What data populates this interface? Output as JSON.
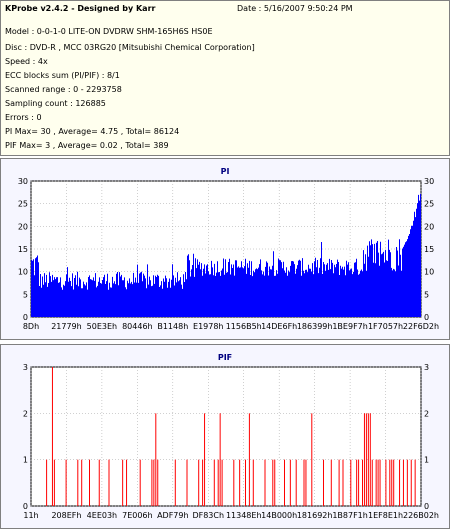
{
  "header": {
    "brand": "KProbe v2.4.2 - Designed by Karr",
    "date": "Date : 5/16/2007 9:50:24 PM"
  },
  "info_lines": [
    "Model : 0-0-1-0 LITE-ON DVDRW SHM-165H6S HS0E",
    "Disc : DVD-R , MCC 03RG20  [Mitsubishi Chemical Corporation]",
    "Speed : 4x",
    "ECC blocks sum (PI/PIF) : 8/1",
    "Scanned range : 0 - 2293758",
    "Sampling count : 126885",
    "Errors : 0",
    "PI Max= 30 , Average= 4.75 , Total= 86124",
    "PIF Max= 3 , Average= 0.02 , Total= 389"
  ],
  "colors": {
    "pi_series": "#0000ff",
    "pif_series": "#ff0000",
    "title": "#000080",
    "plot_bg": "#f6f6ff",
    "info_bg": "#ffffee"
  },
  "chart_data": [
    {
      "type": "bar",
      "title": "PI",
      "ylim": [
        0,
        30
      ],
      "yticks": [
        0,
        5,
        10,
        15,
        20,
        25,
        30
      ],
      "xticks": [
        "8Dh",
        "21779h",
        "50E3Eh",
        "80446h",
        "B1148h",
        "E1978h",
        "1156B5h",
        "14DE6Fh",
        "186399h",
        "1BE9F7h",
        "1F7057h",
        "22F6D2h"
      ],
      "grid": true,
      "profile": [
        {
          "from": 0.0,
          "to": 0.02,
          "low": 8,
          "high": 15
        },
        {
          "from": 0.02,
          "to": 0.4,
          "low": 6,
          "high": 10
        },
        {
          "from": 0.4,
          "to": 0.42,
          "low": 8,
          "high": 15
        },
        {
          "from": 0.42,
          "to": 0.85,
          "low": 9,
          "high": 13
        },
        {
          "from": 0.85,
          "to": 0.95,
          "low": 10,
          "high": 18
        },
        {
          "from": 0.95,
          "to": 1.0,
          "low": 15,
          "high": 30
        }
      ]
    },
    {
      "type": "bar",
      "title": "PIF",
      "ylim": [
        0,
        3
      ],
      "yticks": [
        0,
        1,
        2,
        3
      ],
      "xticks": [
        "11h",
        "208EFh",
        "4EE03h",
        "7E006h",
        "ADF79h",
        "DF83Ch",
        "11348Eh",
        "14B000h",
        "181692h",
        "1B87F1h",
        "1EF8E1h",
        "226B02h"
      ],
      "grid": true,
      "spikes": [
        {
          "x": 0.04,
          "v": 1
        },
        {
          "x": 0.055,
          "v": 3
        },
        {
          "x": 0.06,
          "v": 1
        },
        {
          "x": 0.09,
          "v": 1
        },
        {
          "x": 0.12,
          "v": 1
        },
        {
          "x": 0.13,
          "v": 1
        },
        {
          "x": 0.15,
          "v": 1
        },
        {
          "x": 0.175,
          "v": 1
        },
        {
          "x": 0.2,
          "v": 1
        },
        {
          "x": 0.235,
          "v": 1
        },
        {
          "x": 0.245,
          "v": 1
        },
        {
          "x": 0.28,
          "v": 1
        },
        {
          "x": 0.31,
          "v": 1
        },
        {
          "x": 0.315,
          "v": 1
        },
        {
          "x": 0.32,
          "v": 2
        },
        {
          "x": 0.325,
          "v": 1
        },
        {
          "x": 0.37,
          "v": 1
        },
        {
          "x": 0.4,
          "v": 1
        },
        {
          "x": 0.43,
          "v": 1
        },
        {
          "x": 0.44,
          "v": 1
        },
        {
          "x": 0.445,
          "v": 2
        },
        {
          "x": 0.47,
          "v": 1
        },
        {
          "x": 0.48,
          "v": 1
        },
        {
          "x": 0.485,
          "v": 2
        },
        {
          "x": 0.49,
          "v": 1
        },
        {
          "x": 0.52,
          "v": 1
        },
        {
          "x": 0.535,
          "v": 1
        },
        {
          "x": 0.55,
          "v": 1
        },
        {
          "x": 0.56,
          "v": 2
        },
        {
          "x": 0.57,
          "v": 1
        },
        {
          "x": 0.6,
          "v": 1
        },
        {
          "x": 0.62,
          "v": 1
        },
        {
          "x": 0.625,
          "v": 1
        },
        {
          "x": 0.65,
          "v": 1
        },
        {
          "x": 0.665,
          "v": 1
        },
        {
          "x": 0.68,
          "v": 1
        },
        {
          "x": 0.7,
          "v": 1
        },
        {
          "x": 0.705,
          "v": 1
        },
        {
          "x": 0.72,
          "v": 2
        },
        {
          "x": 0.75,
          "v": 1
        },
        {
          "x": 0.77,
          "v": 1
        },
        {
          "x": 0.79,
          "v": 1
        },
        {
          "x": 0.8,
          "v": 1
        },
        {
          "x": 0.82,
          "v": 1
        },
        {
          "x": 0.835,
          "v": 1
        },
        {
          "x": 0.84,
          "v": 1
        },
        {
          "x": 0.85,
          "v": 1
        },
        {
          "x": 0.855,
          "v": 2
        },
        {
          "x": 0.86,
          "v": 2
        },
        {
          "x": 0.865,
          "v": 2
        },
        {
          "x": 0.87,
          "v": 2
        },
        {
          "x": 0.875,
          "v": 1
        },
        {
          "x": 0.885,
          "v": 1
        },
        {
          "x": 0.89,
          "v": 1
        },
        {
          "x": 0.895,
          "v": 1
        },
        {
          "x": 0.91,
          "v": 1
        },
        {
          "x": 0.92,
          "v": 1
        },
        {
          "x": 0.925,
          "v": 1
        },
        {
          "x": 0.93,
          "v": 1
        },
        {
          "x": 0.945,
          "v": 1
        },
        {
          "x": 0.955,
          "v": 1
        },
        {
          "x": 0.965,
          "v": 1
        },
        {
          "x": 0.975,
          "v": 1
        },
        {
          "x": 0.985,
          "v": 1
        }
      ]
    }
  ]
}
